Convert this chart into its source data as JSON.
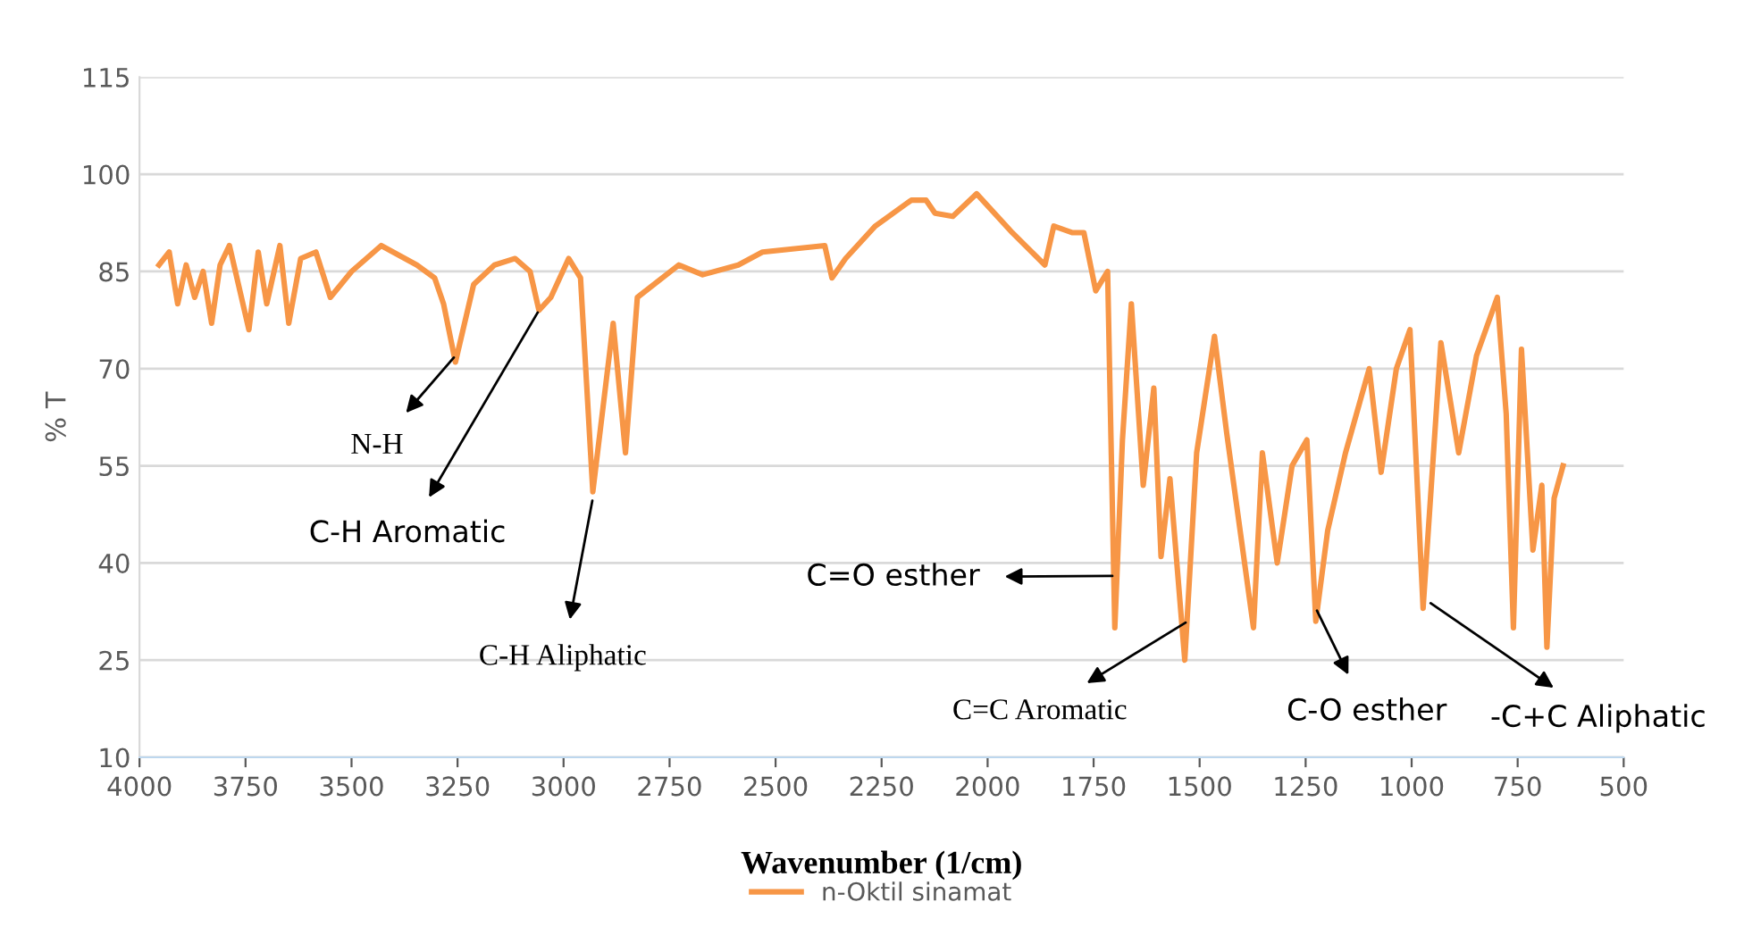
{
  "chart_data": {
    "type": "line",
    "xlabel": "Wavenumber (1/cm)",
    "ylabel": "% T",
    "xlim": [
      4000,
      500
    ],
    "xticks": [
      4000,
      3750,
      3500,
      3250,
      3000,
      2750,
      2500,
      2250,
      2000,
      1750,
      1500,
      1250,
      1000,
      750,
      500
    ],
    "ylim": [
      10,
      115
    ],
    "yticks": [
      10,
      25,
      40,
      55,
      70,
      85,
      100,
      115
    ],
    "grid": "y",
    "legend": "bottom",
    "line_style": "solid",
    "marker": "none",
    "series": [
      {
        "name": "n-Oktil sinamat",
        "color": "#f79646",
        "x": [
          3954,
          3930,
          3910,
          3890,
          3870,
          3850,
          3830,
          3810,
          3788,
          3742,
          3720,
          3700,
          3669,
          3648,
          3620,
          3584,
          3550,
          3500,
          3430,
          3346,
          3304,
          3283,
          3255,
          3212,
          3163,
          3114,
          3079,
          3058,
          3030,
          2988,
          2960,
          2931,
          2883,
          2854,
          2826,
          2728,
          2672,
          2588,
          2531,
          2384,
          2367,
          2335,
          2265,
          2180,
          2145,
          2124,
          2082,
          2026,
          1942,
          1865,
          1844,
          1801,
          1773,
          1745,
          1717,
          1700,
          1682,
          1661,
          1633,
          1608,
          1591,
          1570,
          1535,
          1507,
          1465,
          1436,
          1373,
          1352,
          1317,
          1282,
          1247,
          1226,
          1198,
          1156,
          1100,
          1072,
          1036,
          1004,
          973,
          931,
          889,
          847,
          798,
          777,
          760,
          741,
          714,
          693,
          681,
          664,
          643
        ],
        "values": [
          86,
          88,
          80,
          86,
          81,
          85,
          77,
          86,
          89,
          76,
          88,
          80,
          89,
          77,
          87,
          88,
          81,
          85,
          89,
          86,
          84,
          80,
          71,
          83,
          86,
          87,
          85,
          79,
          81,
          87,
          84,
          51,
          77,
          57,
          81,
          86,
          84.5,
          86,
          88,
          89,
          84,
          87,
          92,
          96,
          96,
          94,
          93.5,
          97,
          91,
          86,
          92,
          91,
          91,
          82,
          85,
          30,
          59,
          80,
          52,
          67,
          41,
          53,
          25,
          57,
          75,
          60,
          30,
          57,
          40,
          55,
          59,
          31,
          45,
          57,
          70,
          54,
          70,
          76,
          33,
          74,
          57,
          72,
          81,
          63,
          30,
          73,
          42,
          52,
          27,
          50,
          55
        ]
      }
    ],
    "annotations": [
      {
        "text": "N-H",
        "x": 3255,
        "y": 72
      },
      {
        "text": "C-H Aromatic",
        "x": 3058,
        "y": 79
      },
      {
        "text": "C-H Aliphatic",
        "x": 2931,
        "y": 50
      },
      {
        "text": "C=O esther",
        "x": 1700,
        "y": 38
      },
      {
        "text": "C=C Aromatic",
        "x": 1528,
        "y": 31
      },
      {
        "text": "C-O esther",
        "x": 1226,
        "y": 33
      },
      {
        "text": "-C+C Aliphatic",
        "x": 960,
        "y": 34
      }
    ]
  }
}
